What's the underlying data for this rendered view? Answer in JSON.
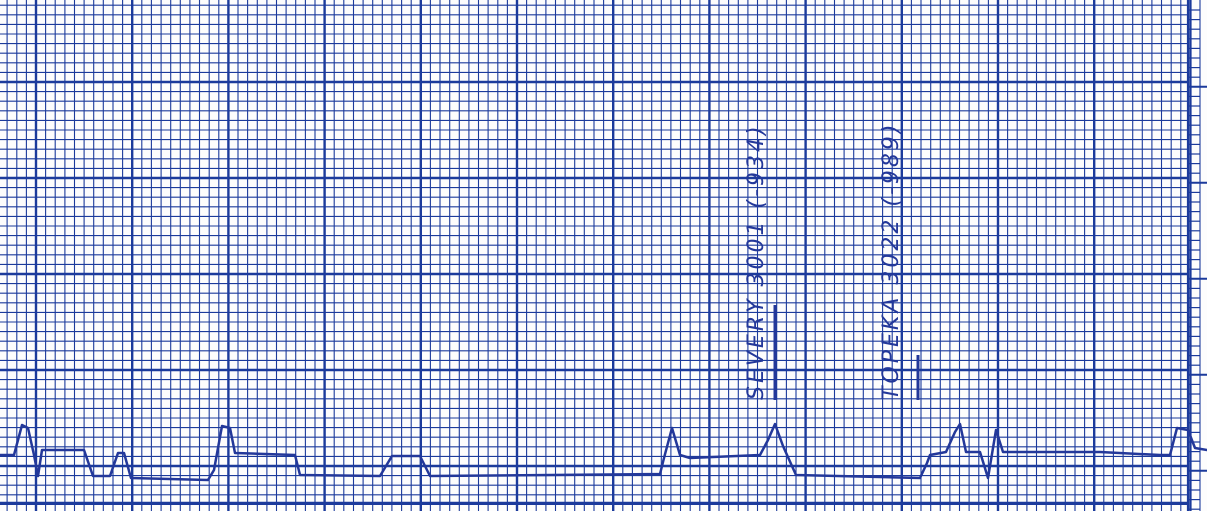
{
  "recording": {
    "ink_color": "#23389a",
    "grid_color": "#1c3b9c",
    "paper_color": "#fdfdfd",
    "annotations": [
      {
        "text": "SEVERY 3001 (-934)"
      },
      {
        "text": "TOPEKA 3022 (-989)"
      }
    ]
  }
}
